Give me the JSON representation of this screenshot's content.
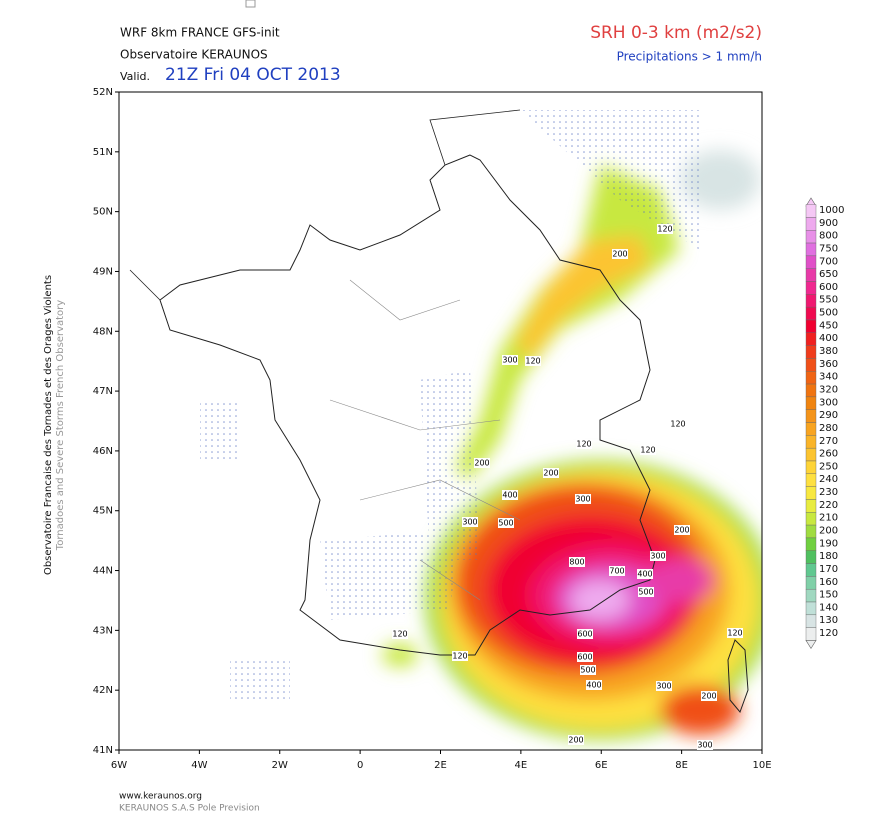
{
  "header": {
    "line1": "WRF 8km FRANCE  GFS-init",
    "line2": "Observatoire KERAUNOS",
    "valid_label": "Valid.",
    "valid_time": "21Z Fri 04 OCT 2013",
    "title": "SRH 0-3 km (m2/s2)",
    "subtitle": "Precipitations > 1 mm/h"
  },
  "side": {
    "line1": "Observatoire Francaise des Tornades et des Orages Violents",
    "line2": "Tornadoes and Severe Storms French Observatory"
  },
  "map": {
    "lat_labels": [
      "52N",
      "51N",
      "50N",
      "49N",
      "48N",
      "47N",
      "46N",
      "45N",
      "44N",
      "43N",
      "42N",
      "41N"
    ],
    "lon_labels": [
      "6W",
      "4W",
      "2W",
      "0",
      "2E",
      "4E",
      "6E",
      "8E",
      "10E"
    ],
    "contour_labels": [
      "200",
      "120",
      "300",
      "120",
      "200",
      "120",
      "120",
      "120",
      "200",
      "400",
      "300",
      "300",
      "500",
      "200",
      "300",
      "800",
      "700",
      "400",
      "500",
      "600",
      "120",
      "120",
      "120",
      "600",
      "500",
      "400",
      "300",
      "200",
      "200",
      "300"
    ]
  },
  "colorbar": {
    "labels": [
      "1000",
      "900",
      "800",
      "750",
      "700",
      "650",
      "600",
      "550",
      "500",
      "450",
      "400",
      "380",
      "360",
      "340",
      "320",
      "300",
      "290",
      "280",
      "270",
      "260",
      "250",
      "240",
      "230",
      "220",
      "210",
      "200",
      "190",
      "180",
      "170",
      "160",
      "150",
      "140",
      "130",
      "120"
    ],
    "colors": [
      "#f5c8f5",
      "#eeaaee",
      "#e890e8",
      "#e070e0",
      "#e050c8",
      "#e83aa8",
      "#f02890",
      "#f01870",
      "#f00a50",
      "#f00030",
      "#f02020",
      "#f03c1c",
      "#f05018",
      "#f06414",
      "#f07410",
      "#f08410",
      "#f4941a",
      "#f8a420",
      "#fab428",
      "#fcc430",
      "#fed438",
      "#fee040",
      "#f8e840",
      "#e8ec40",
      "#c8e840",
      "#a0dc40",
      "#70d040",
      "#50c060",
      "#60c890",
      "#80d0a8",
      "#a0d8c0",
      "#c0e0d8",
      "#d8e4e4",
      "#eceeee"
    ]
  },
  "footer": {
    "line1": "www.keraunos.org",
    "line2": "KERAUNOS S.A.S Pole Prevision"
  }
}
